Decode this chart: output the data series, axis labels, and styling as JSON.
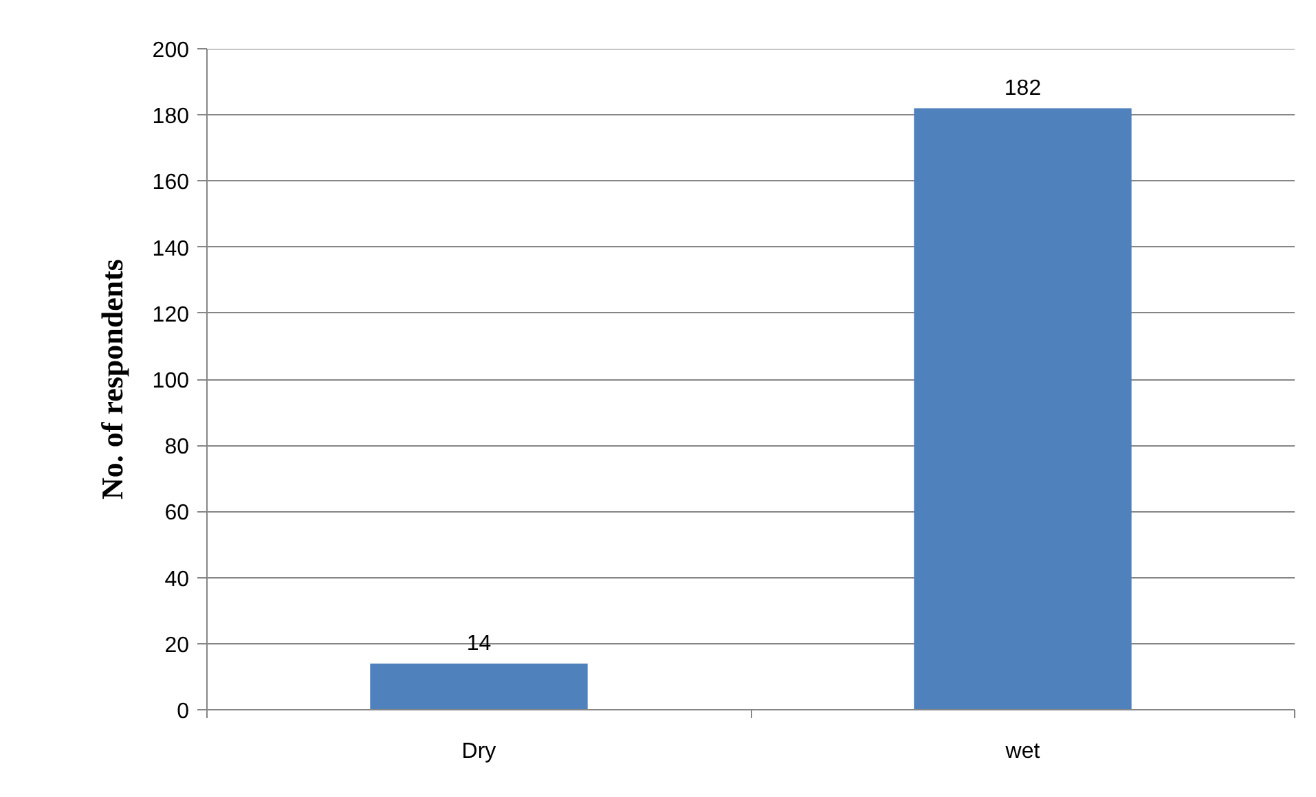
{
  "chart_data": {
    "type": "bar",
    "categories": [
      "Dry",
      "wet"
    ],
    "values": [
      14,
      182
    ],
    "color": "#4f81bd",
    "ylabel": "No. of respondents",
    "ylim": [
      0,
      200
    ],
    "yticks": [
      0,
      20,
      40,
      60,
      80,
      100,
      120,
      140,
      160,
      180,
      200
    ],
    "grid": "y",
    "data_labels": true
  }
}
